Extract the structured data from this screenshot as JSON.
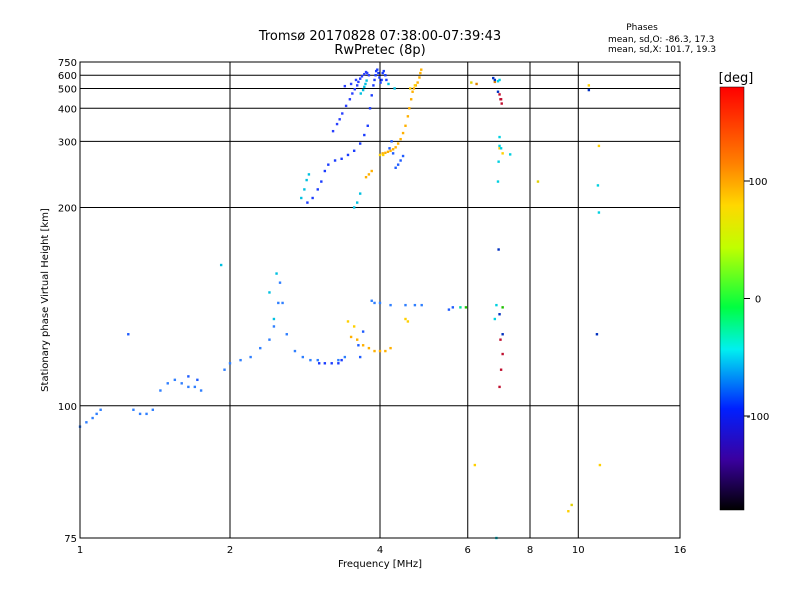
{
  "chart_data": {
    "type": "scatter",
    "title": "Tromsø 20170828 07:38:00-07:39:43",
    "subtitle": "RwPretec (8p)",
    "xlabel": "Frequency [MHz]",
    "ylabel": "Stationary phase Virtual Height [km]",
    "x_scale": "log",
    "y_scale": "reciprocal",
    "xlim": [
      1,
      16
    ],
    "ylim": [
      75,
      750
    ],
    "x_ticks": [
      1,
      2,
      4,
      6,
      8,
      10,
      16
    ],
    "x_tick_labels": [
      "1",
      "2",
      "4",
      "6",
      "8",
      "10",
      "16"
    ],
    "y_ticks": [
      75,
      100,
      200,
      300,
      400,
      500,
      600,
      750
    ],
    "y_tick_labels": [
      "75",
      "100",
      "200",
      "300",
      "400",
      "500",
      "600",
      "750"
    ],
    "grid": true,
    "phases": {
      "title": "Phases",
      "line1": "mean, sd,O: -86.3, 17.3",
      "line2": "mean, sd,X: 101.7, 19.3"
    },
    "colorbar": {
      "label": "[deg]",
      "min": -180,
      "max": 180,
      "ticks": [
        100,
        0,
        -100
      ],
      "tick_labels": [
        "100",
        "0",
        "-100"
      ]
    },
    "series": [
      {
        "color": "#2f7fff",
        "points": [
          [
            1.0,
            95
          ],
          [
            1.03,
            96
          ],
          [
            1.06,
            97
          ],
          [
            1.08,
            98
          ],
          [
            1.1,
            99
          ],
          [
            1.28,
            99
          ],
          [
            1.32,
            98
          ],
          [
            1.36,
            98
          ],
          [
            1.4,
            99
          ],
          [
            1.45,
            104
          ],
          [
            1.5,
            106
          ],
          [
            1.55,
            107
          ],
          [
            1.6,
            106
          ],
          [
            1.65,
            105
          ],
          [
            1.7,
            105
          ],
          [
            1.75,
            104
          ],
          [
            1.95,
            110
          ],
          [
            2.0,
            112
          ],
          [
            2.1,
            113
          ],
          [
            2.2,
            114
          ],
          [
            2.3,
            117
          ],
          [
            2.4,
            120
          ],
          [
            2.45,
            125
          ],
          [
            2.5,
            135
          ],
          [
            2.52,
            145
          ],
          [
            2.55,
            135
          ],
          [
            2.6,
            122
          ],
          [
            2.7,
            116
          ],
          [
            2.8,
            114
          ],
          [
            2.9,
            113
          ],
          [
            3.0,
            113
          ],
          [
            3.3,
            113
          ],
          [
            3.4,
            114
          ],
          [
            3.85,
            136
          ],
          [
            3.9,
            135
          ],
          [
            4.0,
            135
          ],
          [
            4.2,
            134
          ],
          [
            4.5,
            134
          ],
          [
            4.7,
            134
          ],
          [
            4.85,
            134
          ]
        ]
      },
      {
        "color": "#1a3cff",
        "points": [
          [
            3.02,
            112
          ],
          [
            3.1,
            112
          ],
          [
            3.2,
            112
          ],
          [
            3.3,
            112
          ],
          [
            3.35,
            113
          ],
          [
            2.86,
            205
          ],
          [
            2.93,
            210
          ],
          [
            3.0,
            220
          ],
          [
            3.05,
            230
          ],
          [
            3.1,
            245
          ],
          [
            3.15,
            255
          ],
          [
            3.25,
            262
          ],
          [
            3.35,
            265
          ],
          [
            3.45,
            272
          ],
          [
            3.55,
            280
          ],
          [
            3.65,
            295
          ],
          [
            3.72,
            315
          ],
          [
            3.78,
            340
          ],
          [
            3.82,
            400
          ],
          [
            3.85,
            460
          ],
          [
            3.88,
            520
          ],
          [
            3.9,
            560
          ],
          [
            3.92,
            600
          ],
          [
            3.93,
            640
          ],
          [
            3.95,
            655
          ],
          [
            3.97,
            620
          ],
          [
            3.99,
            580
          ],
          [
            4.01,
            540
          ],
          [
            4.03,
            560
          ],
          [
            4.05,
            620
          ],
          [
            4.07,
            640
          ],
          [
            4.1,
            600
          ],
          [
            4.12,
            560
          ]
        ]
      },
      {
        "color": "#2a40ff",
        "points": [
          [
            3.22,
            325
          ],
          [
            3.28,
            345
          ],
          [
            3.32,
            360
          ],
          [
            3.36,
            380
          ],
          [
            3.42,
            410
          ],
          [
            3.48,
            440
          ],
          [
            3.52,
            470
          ],
          [
            3.56,
            495
          ],
          [
            3.6,
            520
          ],
          [
            3.62,
            545
          ],
          [
            3.65,
            570
          ],
          [
            3.68,
            590
          ],
          [
            3.72,
            610
          ],
          [
            3.75,
            630
          ],
          [
            3.77,
            620
          ],
          [
            3.8,
            600
          ],
          [
            3.4,
            515
          ],
          [
            3.5,
            530
          ],
          [
            3.58,
            560
          ]
        ]
      },
      {
        "color": "#00c0e0",
        "points": [
          [
            2.78,
            210
          ],
          [
            2.82,
            220
          ],
          [
            2.85,
            232
          ],
          [
            2.88,
            240
          ],
          [
            1.92,
            155
          ],
          [
            2.4,
            140
          ],
          [
            2.48,
            150
          ],
          [
            2.45,
            128
          ],
          [
            3.55,
            200
          ],
          [
            3.6,
            205
          ],
          [
            3.65,
            215
          ],
          [
            3.66,
            470
          ],
          [
            3.7,
            490
          ],
          [
            3.72,
            510
          ],
          [
            3.74,
            530
          ],
          [
            3.76,
            555
          ],
          [
            4.16,
            530
          ],
          [
            4.28,
            500
          ]
        ]
      },
      {
        "color": "#1f5cff",
        "points": [
          [
            1.25,
            122
          ],
          [
            1.65,
            108
          ],
          [
            1.72,
            107
          ],
          [
            3.62,
            118
          ],
          [
            3.65,
            114
          ],
          [
            3.7,
            123
          ],
          [
            4.3,
            250
          ],
          [
            4.35,
            255
          ],
          [
            4.4,
            262
          ],
          [
            4.45,
            270
          ],
          [
            4.25,
            275
          ],
          [
            4.18,
            285
          ],
          [
            4.22,
            300
          ],
          [
            5.5,
            132
          ],
          [
            5.6,
            133
          ]
        ]
      },
      {
        "color": "#ffb000",
        "points": [
          [
            3.5,
            121
          ],
          [
            3.6,
            120
          ],
          [
            3.7,
            118
          ],
          [
            3.8,
            117
          ],
          [
            3.9,
            116
          ],
          [
            4.0,
            116
          ],
          [
            4.1,
            116
          ],
          [
            4.2,
            117
          ],
          [
            4.05,
            275
          ],
          [
            4.1,
            276
          ],
          [
            4.15,
            278
          ],
          [
            4.2,
            280
          ],
          [
            4.25,
            283
          ],
          [
            4.3,
            287
          ],
          [
            4.35,
            295
          ],
          [
            4.4,
            305
          ],
          [
            4.45,
            320
          ],
          [
            4.5,
            340
          ],
          [
            4.55,
            370
          ],
          [
            4.58,
            400
          ],
          [
            4.62,
            440
          ],
          [
            4.65,
            480
          ],
          [
            4.68,
            500
          ],
          [
            4.72,
            520
          ],
          [
            4.76,
            540
          ],
          [
            4.8,
            580
          ],
          [
            4.82,
            620
          ],
          [
            4.84,
            655
          ],
          [
            3.75,
            236
          ],
          [
            3.8,
            240
          ],
          [
            3.85,
            245
          ]
        ]
      },
      {
        "color": "#ffd000",
        "points": [
          [
            3.45,
            127
          ],
          [
            3.55,
            125
          ],
          [
            4.5,
            128
          ],
          [
            4.55,
            127
          ],
          [
            4.0,
            272
          ],
          [
            4.06,
            272
          ],
          [
            4.6,
            500
          ],
          [
            4.7,
            520
          ],
          [
            6.2,
            87
          ],
          [
            7.05,
            275
          ],
          [
            9.55,
            79
          ],
          [
            10.5,
            520
          ],
          [
            11.0,
            290
          ],
          [
            11.05,
            87
          ],
          [
            6.95,
            285
          ]
        ]
      },
      {
        "color": "#e08000",
        "points": [
          [
            6.25,
            530
          ],
          [
            6.8,
            545
          ]
        ]
      },
      {
        "color": "#00e0a0",
        "points": [
          [
            5.8,
            133
          ]
        ]
      },
      {
        "color": "#20c000",
        "points": [
          [
            5.95,
            133
          ],
          [
            7.05,
            133
          ]
        ]
      },
      {
        "color": "#00d0e0",
        "points": [
          [
            6.95,
            310
          ],
          [
            6.92,
            260
          ],
          [
            6.9,
            230
          ],
          [
            6.95,
            290
          ],
          [
            7.3,
            273
          ],
          [
            10.95,
            225
          ],
          [
            11.0,
            195
          ],
          [
            6.85,
            75
          ],
          [
            6.8,
            128
          ],
          [
            6.85,
            134
          ],
          [
            7.0,
            285
          ],
          [
            6.9,
            550
          ],
          [
            6.95,
            560
          ]
        ]
      },
      {
        "color": "#0030c0",
        "points": [
          [
            6.75,
            575
          ],
          [
            6.8,
            560
          ],
          [
            6.9,
            480
          ],
          [
            6.95,
            130
          ],
          [
            7.05,
            122
          ],
          [
            6.92,
            165
          ],
          [
            10.9,
            122
          ],
          [
            10.5,
            490
          ]
        ]
      },
      {
        "color": "#c01030",
        "points": [
          [
            6.95,
            465
          ],
          [
            7.0,
            440
          ],
          [
            7.02,
            420
          ],
          [
            6.98,
            440
          ],
          [
            6.95,
            105
          ],
          [
            7.0,
            110
          ],
          [
            7.05,
            115
          ],
          [
            6.98,
            120
          ]
        ]
      },
      {
        "color": "#e0d000",
        "points": [
          [
            6.1,
            540
          ],
          [
            9.7,
            80
          ],
          [
            8.3,
            230
          ]
        ]
      }
    ]
  }
}
